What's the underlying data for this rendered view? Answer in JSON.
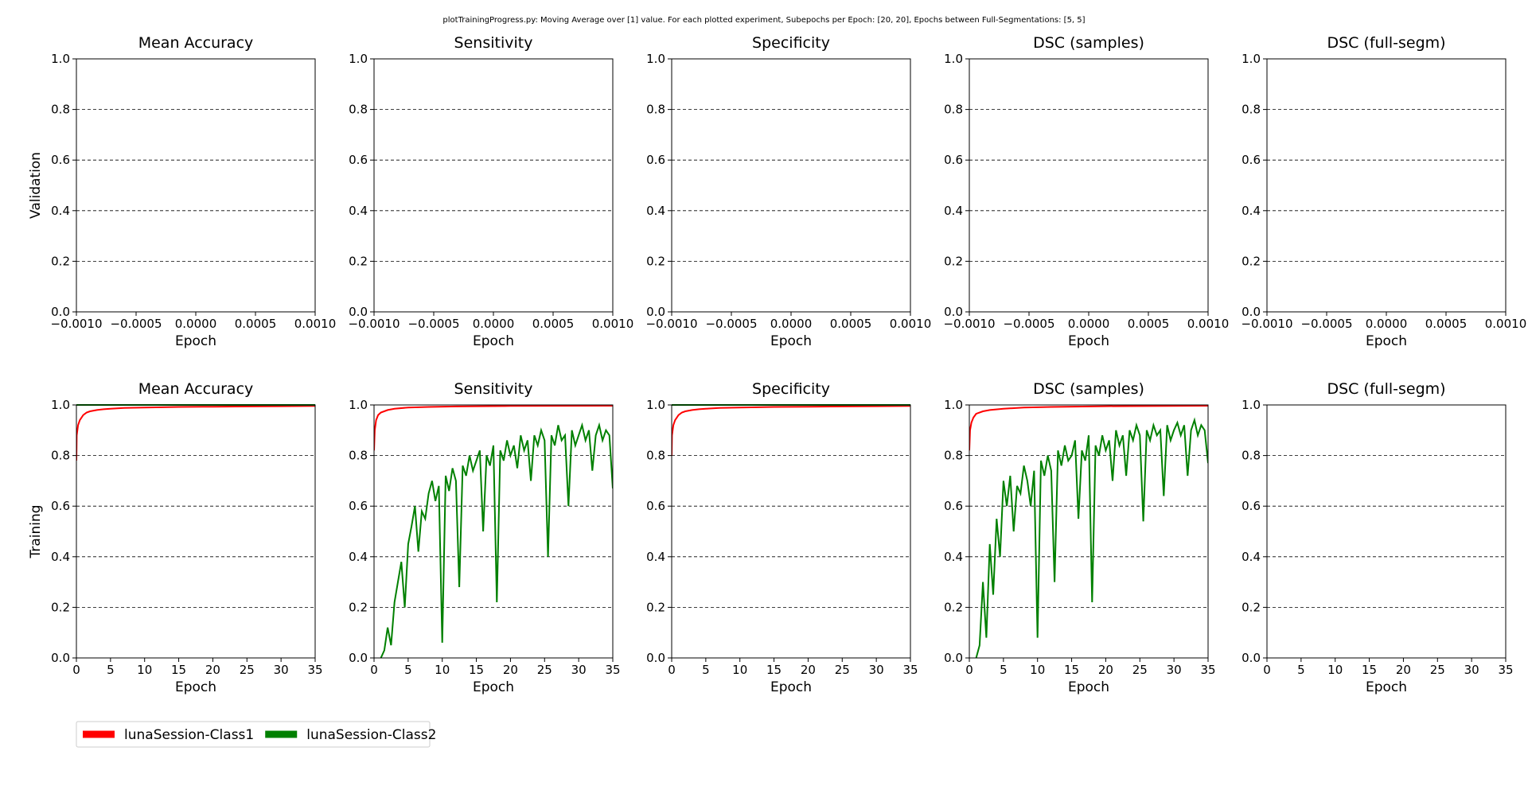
{
  "suptitle": "plotTrainingProgress.py: Moving Average over [1] value. For each plotted experiment, Subepochs per Epoch: [20, 20], Epochs between Full-Segmentations: [5, 5]",
  "colors": {
    "class1": "#ff0000",
    "class2": "#008000"
  },
  "legend": {
    "placement": "bottom-left",
    "entries": [
      {
        "name": "lunaSession-Class1",
        "color": "#ff0000"
      },
      {
        "name": "lunaSession-Class2",
        "color": "#008000"
      }
    ]
  },
  "chart_data": [
    {
      "type": "line",
      "row": "Validation",
      "title": "Mean Accuracy",
      "ylabel": "Validation",
      "xlabel": "Epoch",
      "xlim": [
        -0.001,
        0.001
      ],
      "ylim": [
        0,
        1
      ],
      "grid": true,
      "xticks": [
        "−0.0010",
        "−0.0005",
        "0.0000",
        "0.0005",
        "0.0010"
      ],
      "yticks": [
        "0.0",
        "0.2",
        "0.4",
        "0.6",
        "0.8",
        "1.0"
      ],
      "series": []
    },
    {
      "type": "line",
      "row": "Validation",
      "title": "Sensitivity",
      "xlabel": "Epoch",
      "xlim": [
        -0.001,
        0.001
      ],
      "ylim": [
        0,
        1
      ],
      "grid": true,
      "xticks": [
        "−0.0010",
        "−0.0005",
        "0.0000",
        "0.0005",
        "0.0010"
      ],
      "yticks": [
        "0.0",
        "0.2",
        "0.4",
        "0.6",
        "0.8",
        "1.0"
      ],
      "series": []
    },
    {
      "type": "line",
      "row": "Validation",
      "title": "Specificity",
      "xlabel": "Epoch",
      "xlim": [
        -0.001,
        0.001
      ],
      "ylim": [
        0,
        1
      ],
      "grid": true,
      "xticks": [
        "−0.0010",
        "−0.0005",
        "0.0000",
        "0.0005",
        "0.0010"
      ],
      "yticks": [
        "0.0",
        "0.2",
        "0.4",
        "0.6",
        "0.8",
        "1.0"
      ],
      "series": []
    },
    {
      "type": "line",
      "row": "Validation",
      "title": "DSC (samples)",
      "xlabel": "Epoch",
      "xlim": [
        -0.001,
        0.001
      ],
      "ylim": [
        0,
        1
      ],
      "grid": true,
      "xticks": [
        "−0.0010",
        "−0.0005",
        "0.0000",
        "0.0005",
        "0.0010"
      ],
      "yticks": [
        "0.0",
        "0.2",
        "0.4",
        "0.6",
        "0.8",
        "1.0"
      ],
      "series": []
    },
    {
      "type": "line",
      "row": "Validation",
      "title": "DSC (full-segm)",
      "xlabel": "Epoch",
      "xlim": [
        -0.001,
        0.001
      ],
      "ylim": [
        0,
        1
      ],
      "grid": true,
      "xticks": [
        "−0.0010",
        "−0.0005",
        "0.0000",
        "0.0005",
        "0.0010"
      ],
      "yticks": [
        "0.0",
        "0.2",
        "0.4",
        "0.6",
        "0.8",
        "1.0"
      ],
      "series": []
    },
    {
      "type": "line",
      "row": "Training",
      "title": "Mean Accuracy",
      "ylabel": "Training",
      "xlabel": "Epoch",
      "xlim": [
        0,
        35
      ],
      "ylim": [
        0,
        1
      ],
      "grid": true,
      "xticks": [
        "0",
        "5",
        "10",
        "15",
        "20",
        "25",
        "30",
        "35"
      ],
      "yticks": [
        "0.0",
        "0.2",
        "0.4",
        "0.6",
        "0.8",
        "1.0"
      ],
      "series": [
        {
          "name": "lunaSession-Class1",
          "color": "#ff0000",
          "x": [
            0,
            0.05,
            0.25,
            0.5,
            1,
            1.5,
            2,
            3,
            4,
            5,
            7,
            10,
            15,
            20,
            25,
            30,
            35
          ],
          "y": [
            0.78,
            0.88,
            0.92,
            0.94,
            0.96,
            0.97,
            0.975,
            0.98,
            0.983,
            0.985,
            0.988,
            0.99,
            0.992,
            0.993,
            0.994,
            0.995,
            0.996
          ]
        },
        {
          "name": "lunaSession-Class2",
          "color": "#008000",
          "x": [
            0,
            35
          ],
          "y": [
            1.0,
            1.0
          ]
        }
      ]
    },
    {
      "type": "line",
      "row": "Training",
      "title": "Sensitivity",
      "xlabel": "Epoch",
      "xlim": [
        0,
        35
      ],
      "ylim": [
        0,
        1
      ],
      "grid": true,
      "xticks": [
        "0",
        "5",
        "10",
        "15",
        "20",
        "25",
        "30",
        "35"
      ],
      "yticks": [
        "0.0",
        "0.2",
        "0.4",
        "0.6",
        "0.8",
        "1.0"
      ],
      "series": [
        {
          "name": "lunaSession-Class1",
          "color": "#ff0000",
          "x": [
            0,
            0.1,
            0.3,
            0.6,
            1,
            2,
            3,
            5,
            8,
            12,
            20,
            35
          ],
          "y": [
            0.82,
            0.9,
            0.94,
            0.96,
            0.97,
            0.98,
            0.985,
            0.99,
            0.992,
            0.994,
            0.996,
            0.997
          ]
        },
        {
          "name": "lunaSession-Class2",
          "color": "#008000",
          "x": [
            1,
            1.5,
            2,
            2.5,
            3,
            3.5,
            4,
            4.5,
            5,
            5.5,
            6,
            6.5,
            7,
            7.5,
            8,
            8.5,
            9,
            9.5,
            10,
            10.5,
            11,
            11.5,
            12,
            12.5,
            13,
            13.5,
            14,
            14.5,
            15,
            15.5,
            16,
            16.5,
            17,
            17.5,
            18,
            18.5,
            19,
            19.5,
            20,
            20.5,
            21,
            21.5,
            22,
            22.5,
            23,
            23.5,
            24,
            24.5,
            25,
            25.5,
            26,
            26.5,
            27,
            27.5,
            28,
            28.5,
            29,
            29.5,
            30,
            30.5,
            31,
            31.5,
            32,
            32.5,
            33,
            33.5,
            34,
            34.5,
            35
          ],
          "y": [
            0.0,
            0.03,
            0.12,
            0.05,
            0.22,
            0.3,
            0.38,
            0.2,
            0.45,
            0.52,
            0.6,
            0.42,
            0.58,
            0.55,
            0.65,
            0.7,
            0.62,
            0.68,
            0.06,
            0.72,
            0.66,
            0.75,
            0.7,
            0.28,
            0.76,
            0.72,
            0.8,
            0.74,
            0.78,
            0.82,
            0.5,
            0.8,
            0.76,
            0.84,
            0.22,
            0.82,
            0.78,
            0.86,
            0.8,
            0.84,
            0.75,
            0.88,
            0.82,
            0.86,
            0.7,
            0.88,
            0.84,
            0.9,
            0.86,
            0.4,
            0.88,
            0.84,
            0.92,
            0.86,
            0.88,
            0.6,
            0.9,
            0.84,
            0.88,
            0.92,
            0.86,
            0.9,
            0.74,
            0.88,
            0.92,
            0.86,
            0.9,
            0.88,
            0.67
          ]
        }
      ]
    },
    {
      "type": "line",
      "row": "Training",
      "title": "Specificity",
      "xlabel": "Epoch",
      "xlim": [
        0,
        35
      ],
      "ylim": [
        0,
        1
      ],
      "grid": true,
      "xticks": [
        "0",
        "5",
        "10",
        "15",
        "20",
        "25",
        "30",
        "35"
      ],
      "yticks": [
        "0.0",
        "0.2",
        "0.4",
        "0.6",
        "0.8",
        "1.0"
      ],
      "series": [
        {
          "name": "lunaSession-Class1",
          "color": "#ff0000",
          "x": [
            0,
            0.05,
            0.25,
            0.5,
            1,
            1.5,
            2,
            3,
            4,
            5,
            7,
            10,
            15,
            20,
            25,
            30,
            35
          ],
          "y": [
            0.8,
            0.88,
            0.92,
            0.94,
            0.96,
            0.97,
            0.975,
            0.98,
            0.983,
            0.985,
            0.988,
            0.99,
            0.992,
            0.993,
            0.994,
            0.995,
            0.996
          ]
        },
        {
          "name": "lunaSession-Class2",
          "color": "#008000",
          "x": [
            0,
            35
          ],
          "y": [
            1.0,
            1.0
          ]
        }
      ]
    },
    {
      "type": "line",
      "row": "Training",
      "title": "DSC (samples)",
      "xlabel": "Epoch",
      "xlim": [
        0,
        35
      ],
      "ylim": [
        0,
        1
      ],
      "grid": true,
      "xticks": [
        "0",
        "5",
        "10",
        "15",
        "20",
        "25",
        "30",
        "35"
      ],
      "yticks": [
        "0.0",
        "0.2",
        "0.4",
        "0.6",
        "0.8",
        "1.0"
      ],
      "series": [
        {
          "name": "lunaSession-Class1",
          "color": "#ff0000",
          "x": [
            0,
            0.1,
            0.3,
            0.6,
            1,
            2,
            3,
            5,
            8,
            12,
            20,
            35
          ],
          "y": [
            0.82,
            0.9,
            0.93,
            0.95,
            0.965,
            0.975,
            0.98,
            0.985,
            0.99,
            0.992,
            0.995,
            0.997
          ]
        },
        {
          "name": "lunaSession-Class2",
          "color": "#008000",
          "x": [
            1,
            1.5,
            2,
            2.5,
            3,
            3.5,
            4,
            4.5,
            5,
            5.5,
            6,
            6.5,
            7,
            7.5,
            8,
            8.5,
            9,
            9.5,
            10,
            10.5,
            11,
            11.5,
            12,
            12.5,
            13,
            13.5,
            14,
            14.5,
            15,
            15.5,
            16,
            16.5,
            17,
            17.5,
            18,
            18.5,
            19,
            19.5,
            20,
            20.5,
            21,
            21.5,
            22,
            22.5,
            23,
            23.5,
            24,
            24.5,
            25,
            25.5,
            26,
            26.5,
            27,
            27.5,
            28,
            28.5,
            29,
            29.5,
            30,
            30.5,
            31,
            31.5,
            32,
            32.5,
            33,
            33.5,
            34,
            34.5,
            35
          ],
          "y": [
            0.0,
            0.05,
            0.3,
            0.08,
            0.45,
            0.25,
            0.55,
            0.4,
            0.7,
            0.6,
            0.72,
            0.5,
            0.68,
            0.65,
            0.76,
            0.7,
            0.6,
            0.74,
            0.08,
            0.78,
            0.72,
            0.8,
            0.74,
            0.3,
            0.82,
            0.76,
            0.84,
            0.78,
            0.8,
            0.86,
            0.55,
            0.82,
            0.78,
            0.88,
            0.22,
            0.84,
            0.8,
            0.88,
            0.82,
            0.86,
            0.7,
            0.9,
            0.84,
            0.88,
            0.72,
            0.9,
            0.86,
            0.92,
            0.88,
            0.54,
            0.9,
            0.86,
            0.92,
            0.88,
            0.9,
            0.64,
            0.92,
            0.86,
            0.9,
            0.93,
            0.88,
            0.92,
            0.72,
            0.9,
            0.94,
            0.88,
            0.92,
            0.9,
            0.77
          ]
        }
      ]
    },
    {
      "type": "line",
      "row": "Training",
      "title": "DSC (full-segm)",
      "xlabel": "Epoch",
      "xlim": [
        0,
        35
      ],
      "ylim": [
        0,
        1
      ],
      "grid": true,
      "xticks": [
        "0",
        "5",
        "10",
        "15",
        "20",
        "25",
        "30",
        "35"
      ],
      "yticks": [
        "0.0",
        "0.2",
        "0.4",
        "0.6",
        "0.8",
        "1.0"
      ],
      "series": []
    }
  ]
}
